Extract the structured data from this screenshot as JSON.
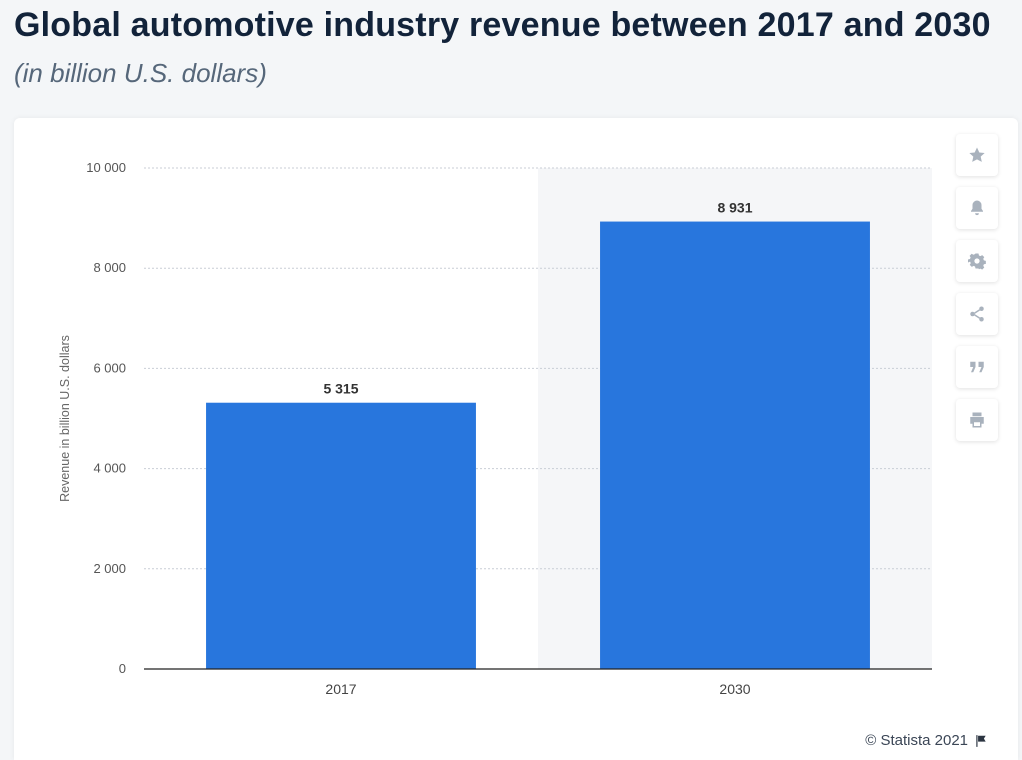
{
  "header": {
    "title": "Global automotive industry revenue between 2017 and 2030",
    "subtitle": "(in billion U.S. dollars)"
  },
  "toolbar": {
    "icons": [
      "star-icon",
      "bell-icon",
      "gear-icon",
      "share-icon",
      "quote-icon",
      "print-icon"
    ]
  },
  "footer": {
    "credit": "© Statista 2021",
    "icon": "flag-icon"
  },
  "colors": {
    "bar": "#2876dd",
    "grid": "#c9ced6",
    "highlight_band": "#f5f6f8"
  },
  "chart_data": {
    "type": "bar",
    "categories": [
      "2017",
      "2030"
    ],
    "values": [
      5315,
      8931
    ],
    "value_labels": [
      "5 315",
      "8 931"
    ],
    "title": "Global automotive industry revenue between 2017 and 2030",
    "subtitle": "(in billion U.S. dollars)",
    "xlabel": "",
    "ylabel": "Revenue in billion U.S. dollars",
    "ylim": [
      0,
      10000
    ],
    "yticks": [
      0,
      2000,
      4000,
      6000,
      8000,
      10000
    ],
    "ytick_labels": [
      "0",
      "2 000",
      "4 000",
      "6 000",
      "8 000",
      "10 000"
    ],
    "grid": true,
    "highlighted_category": "2030"
  }
}
